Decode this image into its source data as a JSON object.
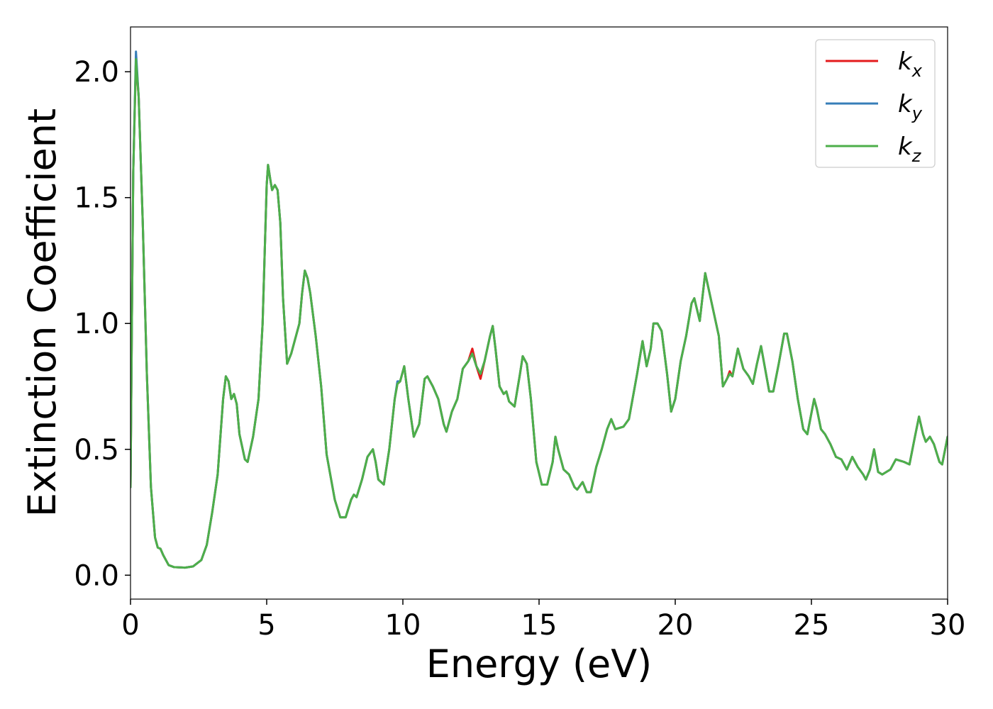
{
  "chart_data": {
    "type": "line",
    "xlabel": "Energy (eV)",
    "ylabel": "Extinction Coefficient",
    "xlim": [
      0,
      30
    ],
    "ylim": [
      -0.095,
      2.178
    ],
    "xticks": [
      0,
      5,
      10,
      15,
      20,
      25,
      30
    ],
    "yticks": [
      {
        "value": 0,
        "label": "0.0"
      },
      {
        "value": 0.5,
        "label": "0.5"
      },
      {
        "value": 1,
        "label": "1.0"
      },
      {
        "value": 1.5,
        "label": "1.5"
      },
      {
        "value": 2,
        "label": "2.0"
      }
    ],
    "grid": false,
    "legend": "upper right",
    "x": [
      0,
      0.05,
      0.1,
      0.2,
      0.3,
      0.45,
      0.6,
      0.75,
      0.9,
      1.0,
      1.1,
      1.2,
      1.4,
      1.6,
      2.0,
      2.3,
      2.6,
      2.8,
      3.0,
      3.2,
      3.4,
      3.5,
      3.6,
      3.7,
      3.8,
      3.9,
      4.0,
      4.2,
      4.3,
      4.5,
      4.7,
      4.85,
      5.0,
      5.05,
      5.15,
      5.2,
      5.3,
      5.4,
      5.5,
      5.6,
      5.75,
      5.9,
      6.0,
      6.2,
      6.3,
      6.4,
      6.5,
      6.6,
      6.8,
      7.0,
      7.2,
      7.5,
      7.7,
      7.9,
      8.1,
      8.2,
      8.3,
      8.5,
      8.7,
      8.9,
      9.0,
      9.1,
      9.3,
      9.5,
      9.7,
      9.8,
      9.9,
      10.05,
      10.2,
      10.4,
      10.6,
      10.8,
      10.9,
      11.1,
      11.3,
      11.5,
      11.6,
      11.8,
      12.0,
      12.2,
      12.4,
      12.55,
      12.7,
      12.85,
      13.0,
      13.2,
      13.3,
      13.4,
      13.55,
      13.7,
      13.8,
      13.9,
      14.1,
      14.3,
      14.4,
      14.55,
      14.7,
      14.9,
      15.1,
      15.3,
      15.5,
      15.6,
      15.7,
      15.9,
      16.1,
      16.3,
      16.4,
      16.6,
      16.75,
      16.9,
      17.1,
      17.3,
      17.5,
      17.65,
      17.8,
      18.1,
      18.3,
      18.6,
      18.8,
      18.95,
      19.1,
      19.2,
      19.35,
      19.5,
      19.7,
      19.85,
      20.0,
      20.2,
      20.4,
      20.6,
      20.7,
      20.9,
      21.1,
      21.2,
      21.4,
      21.6,
      21.75,
      21.9,
      22.0,
      22.1,
      22.3,
      22.5,
      22.7,
      22.85,
      23.0,
      23.15,
      23.3,
      23.45,
      23.6,
      23.8,
      24.0,
      24.1,
      24.3,
      24.5,
      24.7,
      24.85,
      25.1,
      25.2,
      25.35,
      25.5,
      25.7,
      25.9,
      26.1,
      26.3,
      26.5,
      26.7,
      26.9,
      27.0,
      27.15,
      27.3,
      27.45,
      27.6,
      27.9,
      28.1,
      28.4,
      28.6,
      28.8,
      28.95,
      29.1,
      29.2,
      29.35,
      29.5,
      29.7,
      29.8,
      30.0
    ],
    "series": [
      {
        "name": "kx",
        "color": "#e41a1c",
        "values": [
          0.35,
          1.0,
          1.6,
          2.05,
          1.9,
          1.4,
          0.8,
          0.35,
          0.15,
          0.11,
          0.105,
          0.08,
          0.04,
          0.032,
          0.03,
          0.035,
          0.06,
          0.12,
          0.25,
          0.4,
          0.7,
          0.79,
          0.77,
          0.7,
          0.72,
          0.68,
          0.56,
          0.46,
          0.45,
          0.55,
          0.7,
          1.0,
          1.55,
          1.63,
          1.56,
          1.53,
          1.55,
          1.53,
          1.4,
          1.1,
          0.84,
          0.88,
          0.92,
          1.0,
          1.12,
          1.21,
          1.18,
          1.12,
          0.95,
          0.75,
          0.48,
          0.3,
          0.23,
          0.23,
          0.3,
          0.32,
          0.31,
          0.38,
          0.47,
          0.5,
          0.45,
          0.38,
          0.36,
          0.5,
          0.7,
          0.76,
          0.77,
          0.83,
          0.7,
          0.55,
          0.6,
          0.78,
          0.79,
          0.75,
          0.7,
          0.6,
          0.57,
          0.65,
          0.7,
          0.82,
          0.85,
          0.9,
          0.83,
          0.78,
          0.85,
          0.95,
          0.99,
          0.9,
          0.75,
          0.72,
          0.73,
          0.69,
          0.67,
          0.8,
          0.87,
          0.84,
          0.7,
          0.45,
          0.36,
          0.36,
          0.45,
          0.55,
          0.5,
          0.42,
          0.4,
          0.35,
          0.34,
          0.37,
          0.33,
          0.33,
          0.43,
          0.5,
          0.58,
          0.62,
          0.58,
          0.59,
          0.62,
          0.8,
          0.93,
          0.83,
          0.9,
          1.0,
          1.0,
          0.97,
          0.8,
          0.65,
          0.7,
          0.85,
          0.95,
          1.08,
          1.1,
          1.01,
          1.2,
          1.15,
          1.05,
          0.95,
          0.75,
          0.78,
          0.81,
          0.79,
          0.9,
          0.82,
          0.79,
          0.76,
          0.84,
          0.91,
          0.82,
          0.73,
          0.73,
          0.84,
          0.96,
          0.96,
          0.85,
          0.7,
          0.58,
          0.56,
          0.7,
          0.66,
          0.58,
          0.56,
          0.52,
          0.47,
          0.46,
          0.42,
          0.47,
          0.43,
          0.4,
          0.38,
          0.42,
          0.5,
          0.41,
          0.4,
          0.42,
          0.46,
          0.45,
          0.44,
          0.55,
          0.63,
          0.56,
          0.53,
          0.55,
          0.52,
          0.45,
          0.44,
          0.55
        ]
      },
      {
        "name": "ky",
        "color": "#377eb8",
        "values": [
          0.35,
          1.0,
          1.6,
          2.08,
          1.9,
          1.4,
          0.8,
          0.35,
          0.15,
          0.11,
          0.105,
          0.08,
          0.04,
          0.032,
          0.03,
          0.035,
          0.06,
          0.12,
          0.25,
          0.4,
          0.7,
          0.79,
          0.77,
          0.7,
          0.72,
          0.68,
          0.56,
          0.46,
          0.45,
          0.55,
          0.7,
          1.0,
          1.55,
          1.63,
          1.56,
          1.53,
          1.55,
          1.53,
          1.4,
          1.1,
          0.84,
          0.88,
          0.92,
          1.0,
          1.12,
          1.21,
          1.18,
          1.12,
          0.95,
          0.75,
          0.48,
          0.3,
          0.23,
          0.23,
          0.3,
          0.32,
          0.31,
          0.38,
          0.47,
          0.5,
          0.45,
          0.38,
          0.36,
          0.5,
          0.7,
          0.77,
          0.77,
          0.83,
          0.7,
          0.55,
          0.6,
          0.78,
          0.79,
          0.75,
          0.7,
          0.6,
          0.57,
          0.65,
          0.7,
          0.82,
          0.85,
          0.88,
          0.83,
          0.8,
          0.85,
          0.95,
          0.99,
          0.9,
          0.75,
          0.72,
          0.73,
          0.69,
          0.67,
          0.8,
          0.87,
          0.84,
          0.7,
          0.45,
          0.36,
          0.36,
          0.45,
          0.55,
          0.5,
          0.42,
          0.4,
          0.35,
          0.34,
          0.37,
          0.33,
          0.33,
          0.43,
          0.5,
          0.58,
          0.62,
          0.58,
          0.59,
          0.62,
          0.8,
          0.93,
          0.83,
          0.9,
          1.0,
          1.0,
          0.97,
          0.8,
          0.65,
          0.7,
          0.85,
          0.95,
          1.08,
          1.1,
          1.01,
          1.2,
          1.15,
          1.05,
          0.95,
          0.75,
          0.78,
          0.8,
          0.79,
          0.9,
          0.82,
          0.79,
          0.76,
          0.84,
          0.91,
          0.82,
          0.73,
          0.73,
          0.84,
          0.96,
          0.96,
          0.85,
          0.7,
          0.58,
          0.56,
          0.7,
          0.66,
          0.58,
          0.56,
          0.52,
          0.47,
          0.46,
          0.42,
          0.47,
          0.43,
          0.4,
          0.38,
          0.42,
          0.5,
          0.41,
          0.4,
          0.42,
          0.46,
          0.45,
          0.44,
          0.55,
          0.63,
          0.56,
          0.53,
          0.55,
          0.52,
          0.45,
          0.44,
          0.55
        ]
      },
      {
        "name": "kz",
        "color": "#4daf4a",
        "values": [
          0.35,
          1.0,
          1.6,
          2.05,
          1.9,
          1.4,
          0.8,
          0.35,
          0.15,
          0.11,
          0.105,
          0.08,
          0.04,
          0.032,
          0.03,
          0.035,
          0.06,
          0.12,
          0.25,
          0.4,
          0.7,
          0.79,
          0.77,
          0.7,
          0.72,
          0.68,
          0.56,
          0.46,
          0.45,
          0.55,
          0.7,
          1.0,
          1.55,
          1.63,
          1.56,
          1.53,
          1.55,
          1.53,
          1.4,
          1.1,
          0.84,
          0.88,
          0.92,
          1.0,
          1.12,
          1.21,
          1.18,
          1.12,
          0.95,
          0.75,
          0.48,
          0.3,
          0.23,
          0.23,
          0.3,
          0.32,
          0.31,
          0.38,
          0.47,
          0.5,
          0.45,
          0.38,
          0.36,
          0.5,
          0.7,
          0.76,
          0.77,
          0.83,
          0.7,
          0.55,
          0.6,
          0.78,
          0.79,
          0.75,
          0.7,
          0.6,
          0.57,
          0.65,
          0.7,
          0.82,
          0.85,
          0.88,
          0.83,
          0.8,
          0.85,
          0.95,
          0.99,
          0.9,
          0.75,
          0.72,
          0.73,
          0.69,
          0.67,
          0.8,
          0.87,
          0.84,
          0.7,
          0.45,
          0.36,
          0.36,
          0.45,
          0.55,
          0.5,
          0.42,
          0.4,
          0.35,
          0.34,
          0.37,
          0.33,
          0.33,
          0.43,
          0.5,
          0.58,
          0.62,
          0.58,
          0.59,
          0.62,
          0.8,
          0.93,
          0.83,
          0.9,
          1.0,
          1.0,
          0.97,
          0.8,
          0.65,
          0.7,
          0.85,
          0.95,
          1.08,
          1.1,
          1.01,
          1.2,
          1.15,
          1.05,
          0.95,
          0.75,
          0.78,
          0.8,
          0.79,
          0.9,
          0.82,
          0.79,
          0.76,
          0.84,
          0.91,
          0.82,
          0.73,
          0.73,
          0.84,
          0.96,
          0.96,
          0.85,
          0.7,
          0.58,
          0.56,
          0.7,
          0.66,
          0.58,
          0.56,
          0.52,
          0.47,
          0.46,
          0.42,
          0.47,
          0.43,
          0.4,
          0.38,
          0.42,
          0.5,
          0.41,
          0.4,
          0.42,
          0.46,
          0.45,
          0.44,
          0.55,
          0.63,
          0.56,
          0.53,
          0.55,
          0.52,
          0.45,
          0.44,
          0.55
        ]
      }
    ]
  }
}
